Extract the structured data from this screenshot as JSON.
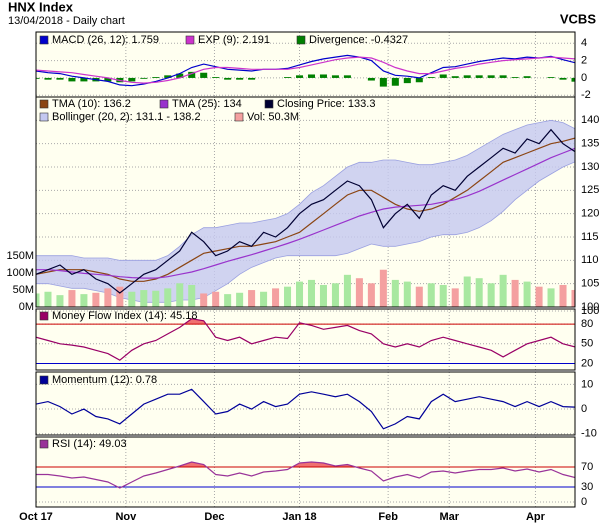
{
  "header": {
    "title": "HNX Index",
    "subtitle": "13/04/2018 - Daily chart",
    "brand": "VCBS"
  },
  "chart_data": [
    {
      "type": "line",
      "x": [
        0,
        1,
        2,
        3,
        4,
        5,
        6,
        7,
        8,
        9,
        10,
        11,
        12,
        13,
        14,
        15,
        16,
        17,
        18,
        19,
        20,
        21,
        22,
        23,
        24,
        25,
        26,
        27,
        28,
        29,
        30,
        31,
        32,
        33,
        34,
        35,
        36,
        37,
        38,
        39,
        40,
        41,
        42,
        43,
        44,
        45
      ],
      "xlim": [
        0,
        45
      ],
      "ylim": [
        -2.2,
        5.3
      ],
      "yticks": [
        -2,
        0,
        2,
        4
      ],
      "grid": true,
      "series": [
        {
          "name": "MACD (26, 12): 1.759",
          "color": "#0000cc",
          "values": [
            0.8,
            0.6,
            0.5,
            0.2,
            0,
            -0.2,
            -0.4,
            -0.8,
            -0.9,
            -0.7,
            -0.4,
            0,
            0.5,
            1.2,
            1.6,
            1.3,
            1,
            0.9,
            0.8,
            1,
            1,
            1.1,
            1.5,
            1.9,
            2.2,
            2.4,
            2.6,
            2.4,
            2,
            0.8,
            0.3,
            0.2,
            0,
            0.6,
            1.2,
            1.3,
            1.6,
            1.9,
            2.1,
            2.3,
            2.2,
            2.4,
            2.3,
            2.5,
            2.1,
            1.759
          ]
        },
        {
          "name": "EXP (9): 2.191",
          "color": "#cc33cc",
          "values": [
            0.9,
            0.8,
            0.7,
            0.6,
            0.4,
            0.2,
            0,
            -0.3,
            -0.5,
            -0.6,
            -0.5,
            -0.3,
            0,
            0.5,
            1,
            1.2,
            1.2,
            1.1,
            1,
            1,
            1,
            1,
            1.2,
            1.5,
            1.8,
            2.1,
            2.3,
            2.4,
            2.3,
            1.8,
            1.2,
            0.8,
            0.5,
            0.5,
            0.8,
            1.1,
            1.3,
            1.6,
            1.8,
            2,
            2.1,
            2.2,
            2.3,
            2.4,
            2.3,
            2.191
          ]
        },
        {
          "name": "Divergence: -0.4327",
          "color": "#008000",
          "type": "bar",
          "values": [
            -0.1,
            -0.2,
            -0.2,
            -0.4,
            -0.4,
            -0.4,
            -0.4,
            -0.5,
            -0.4,
            -0.1,
            0.1,
            0.3,
            0.5,
            0.7,
            0.6,
            0.1,
            -0.2,
            -0.2,
            -0.2,
            0,
            0,
            0.1,
            0.3,
            0.4,
            0.4,
            0.3,
            0.3,
            0,
            -0.3,
            -1,
            -0.9,
            -0.6,
            -0.5,
            0.1,
            0.4,
            0.2,
            0.3,
            0.3,
            0.3,
            0.3,
            0.1,
            0.2,
            0,
            0.1,
            -0.2,
            -0.4327
          ]
        }
      ]
    },
    {
      "type": "line",
      "x": [
        0,
        1,
        2,
        3,
        4,
        5,
        6,
        7,
        8,
        9,
        10,
        11,
        12,
        13,
        14,
        15,
        16,
        17,
        18,
        19,
        20,
        21,
        22,
        23,
        24,
        25,
        26,
        27,
        28,
        29,
        30,
        31,
        32,
        33,
        34,
        35,
        36,
        37,
        38,
        39,
        40,
        41,
        42,
        43,
        44,
        45
      ],
      "xlim": [
        0,
        45
      ],
      "ylim": [
        100,
        145
      ],
      "yticks": [
        100,
        105,
        110,
        115,
        120,
        125,
        130,
        135,
        140
      ],
      "grid": true,
      "y2lim": [
        0,
        620
      ],
      "y2ticks": [
        {
          "value": 0,
          "label": "0M"
        },
        {
          "value": 50,
          "label": "50M"
        },
        {
          "value": 100,
          "label": "100M"
        },
        {
          "value": 150,
          "label": "150M"
        }
      ],
      "series": [
        {
          "name": "TMA (10): 136.2",
          "color": "#8b4513",
          "values": [
            107,
            107.5,
            108,
            108,
            108,
            107.5,
            107,
            106,
            105.5,
            105.5,
            106,
            107,
            108.5,
            110,
            111.5,
            112,
            112.5,
            113,
            113,
            113.5,
            114,
            115,
            116,
            118,
            120,
            122,
            124,
            125,
            125,
            123.5,
            122,
            121,
            120.5,
            121,
            122,
            123.5,
            125,
            127,
            129,
            131,
            132,
            133,
            134,
            135,
            135.5,
            136.2
          ]
        },
        {
          "name": "TMA (25): 134",
          "color": "#9933cc",
          "values": [
            108,
            108,
            107.8,
            107.5,
            107.2,
            107,
            106.8,
            106.5,
            106.3,
            106.2,
            106.2,
            106.5,
            107,
            107.5,
            108.2,
            109,
            109.8,
            110.5,
            111.2,
            112,
            112.8,
            113.6,
            114.5,
            115.5,
            116.5,
            117.5,
            118.5,
            119.5,
            120.3,
            121,
            121.4,
            121.6,
            121.8,
            122,
            122.5,
            123,
            123.8,
            124.8,
            126,
            127.2,
            128.4,
            129.6,
            130.8,
            132,
            133,
            134
          ]
        },
        {
          "name": "Closing Price: 133.3",
          "color": "#000033",
          "values": [
            107,
            108,
            109,
            107,
            108,
            106,
            105,
            103,
            105,
            107,
            108,
            110,
            112,
            116,
            114,
            111,
            112,
            114,
            113,
            116,
            115,
            117,
            120,
            122,
            123,
            125,
            127,
            126,
            123,
            117,
            120,
            122,
            119,
            124,
            126,
            125,
            128,
            130,
            132,
            134,
            133,
            136,
            135,
            138,
            135,
            133.3
          ]
        },
        {
          "name": "Bollinger (20, 2): 131.1 - 138.2",
          "color": "#c4c8f0",
          "type": "band",
          "upper": [
            111,
            111,
            111,
            111,
            110.5,
            110.5,
            110.5,
            110,
            110,
            110,
            110,
            111,
            113,
            115.5,
            117,
            117,
            117.5,
            118,
            118,
            118.5,
            119,
            120,
            122,
            124.5,
            126,
            128,
            130,
            131,
            131,
            131.5,
            131.5,
            131,
            130.5,
            130.5,
            131,
            131.5,
            132.5,
            134,
            135.5,
            137,
            138,
            139,
            139.5,
            140,
            139.5,
            138.2
          ],
          "lower": [
            105,
            105,
            104.5,
            104,
            104,
            103.5,
            103,
            102,
            101.5,
            101,
            101,
            101,
            101.5,
            101.5,
            102,
            103.5,
            105,
            107,
            108.5,
            109.5,
            110.5,
            111,
            111,
            111,
            111,
            111,
            111.5,
            112.5,
            113.5,
            113,
            113,
            113.5,
            114,
            115,
            115.5,
            115.5,
            116,
            117,
            118.5,
            120.5,
            123,
            125,
            127,
            128.5,
            130,
            131.1
          ]
        },
        {
          "name": "Vol: 50.3M",
          "color": "#f4a0a0",
          "type": "bar",
          "axis": "y2",
          "up_color": "#a8e8a0",
          "down_color": "#f4a0a0",
          "values": [
            40,
            45,
            35,
            50,
            38,
            42,
            55,
            60,
            45,
            50,
            48,
            55,
            70,
            65,
            40,
            45,
            38,
            42,
            50,
            45,
            55,
            60,
            75,
            80,
            65,
            70,
            95,
            85,
            70,
            110,
            80,
            75,
            60,
            70,
            65,
            55,
            90,
            85,
            70,
            95,
            80,
            75,
            60,
            55,
            65,
            50.3
          ]
        }
      ]
    },
    {
      "type": "line",
      "x": [
        0,
        1,
        2,
        3,
        4,
        5,
        6,
        7,
        8,
        9,
        10,
        11,
        12,
        13,
        14,
        15,
        16,
        17,
        18,
        19,
        20,
        21,
        22,
        23,
        24,
        25,
        26,
        27,
        28,
        29,
        30,
        31,
        32,
        33,
        34,
        35,
        36,
        37,
        38,
        39,
        40,
        41,
        42,
        43,
        44,
        45
      ],
      "xlim": [
        0,
        45
      ],
      "ylim": [
        10,
        103
      ],
      "yticks": [
        20,
        50,
        80,
        100
      ],
      "grid": true,
      "thresholds": [
        {
          "value": 80,
          "color": "#cc0000",
          "fill": "above"
        },
        {
          "value": 20,
          "color": "#0000cc"
        }
      ],
      "series": [
        {
          "name": "Money Flow Index (14): 45.18",
          "color": "#990066",
          "fill_color": "#f07070",
          "values": [
            60,
            55,
            50,
            48,
            45,
            40,
            35,
            25,
            40,
            50,
            55,
            65,
            75,
            88,
            85,
            60,
            55,
            60,
            50,
            55,
            60,
            58,
            82,
            78,
            72,
            75,
            78,
            70,
            65,
            50,
            45,
            50,
            45,
            55,
            60,
            55,
            50,
            45,
            40,
            30,
            40,
            50,
            55,
            60,
            50,
            45.18
          ]
        }
      ]
    },
    {
      "type": "line",
      "x": [
        0,
        1,
        2,
        3,
        4,
        5,
        6,
        7,
        8,
        9,
        10,
        11,
        12,
        13,
        14,
        15,
        16,
        17,
        18,
        19,
        20,
        21,
        22,
        23,
        24,
        25,
        26,
        27,
        28,
        29,
        30,
        31,
        32,
        33,
        34,
        35,
        36,
        37,
        38,
        39,
        40,
        41,
        42,
        43,
        44,
        45
      ],
      "xlim": [
        0,
        45
      ],
      "ylim": [
        -10.5,
        15
      ],
      "yticks": [
        -10,
        0,
        10
      ],
      "grid": true,
      "series": [
        {
          "name": "Momentum (12): 0.78",
          "color": "#000099",
          "values": [
            2,
            3,
            1,
            -2,
            0,
            -3,
            -4,
            -6,
            -2,
            2,
            4,
            6,
            6,
            8,
            3,
            -2,
            -1,
            2,
            0,
            3,
            1,
            2,
            6,
            7,
            6,
            5,
            6,
            3,
            -1,
            -8,
            -6,
            -3,
            -4,
            3,
            6,
            3,
            4,
            5,
            4,
            3,
            1,
            3,
            1,
            3,
            1,
            0.78
          ]
        }
      ]
    },
    {
      "type": "line",
      "x": [
        0,
        1,
        2,
        3,
        4,
        5,
        6,
        7,
        8,
        9,
        10,
        11,
        12,
        13,
        14,
        15,
        16,
        17,
        18,
        19,
        20,
        21,
        22,
        23,
        24,
        25,
        26,
        27,
        28,
        29,
        30,
        31,
        32,
        33,
        34,
        35,
        36,
        37,
        38,
        39,
        40,
        41,
        42,
        43,
        44,
        45
      ],
      "xlim": [
        0,
        45
      ],
      "ylim": [
        -10,
        130
      ],
      "yticks": [
        0,
        30,
        70
      ],
      "grid": true,
      "xticks": [
        {
          "value": 0,
          "label": "Oct 17"
        },
        {
          "value": 7.5,
          "label": "Nov"
        },
        {
          "value": 14.9,
          "label": "Dec"
        },
        {
          "value": 22,
          "label": "Jan 18"
        },
        {
          "value": 29.4,
          "label": "Feb"
        },
        {
          "value": 34.5,
          "label": "Mar"
        },
        {
          "value": 41.7,
          "label": "Apr"
        }
      ],
      "thresholds": [
        {
          "value": 70,
          "color": "#cc0000",
          "fill": "above"
        },
        {
          "value": 30,
          "color": "#0000cc",
          "fill": "below"
        }
      ],
      "series": [
        {
          "name": "RSI (14): 49.03",
          "color": "#993399",
          "fill_color": "#f07070",
          "fill_low_color": "#6060e0",
          "values": [
            55,
            55,
            52,
            48,
            50,
            45,
            40,
            28,
            40,
            52,
            58,
            65,
            72,
            80,
            75,
            55,
            52,
            58,
            52,
            60,
            62,
            65,
            78,
            80,
            78,
            72,
            75,
            68,
            62,
            42,
            50,
            55,
            48,
            60,
            62,
            58,
            62,
            65,
            65,
            68,
            62,
            66,
            60,
            65,
            55,
            49.03
          ]
        }
      ]
    }
  ]
}
